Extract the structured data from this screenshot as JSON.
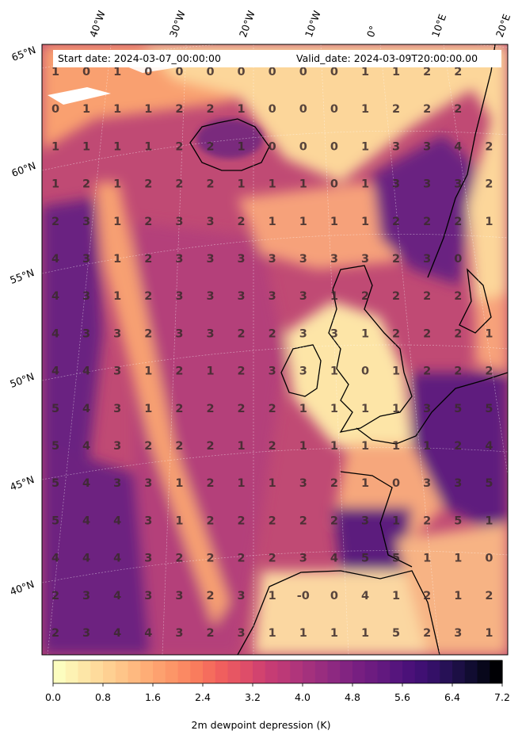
{
  "header": {
    "start_text": "Start date: 2024-03-07_00:00:00",
    "valid_text": "Valid_date: 2024-03-09T20:00:00.00"
  },
  "lon_labels": [
    "40°W",
    "30°W",
    "20°W",
    "10°W",
    "0°",
    "10°E",
    "20°E"
  ],
  "lat_labels": [
    "65°N",
    "60°N",
    "55°N",
    "50°N",
    "45°N",
    "40°N"
  ],
  "grid_values": [
    [
      "1",
      "0",
      "1",
      "0",
      "0",
      "0",
      "0",
      "0",
      "0",
      "0",
      "1",
      "1",
      "2",
      "2",
      ""
    ],
    [
      "0",
      "1",
      "1",
      "1",
      "2",
      "2",
      "1",
      "0",
      "0",
      "0",
      "1",
      "2",
      "2",
      "2",
      ""
    ],
    [
      "1",
      "1",
      "1",
      "1",
      "2",
      "2",
      "1",
      "0",
      "0",
      "0",
      "1",
      "3",
      "3",
      "4",
      "2"
    ],
    [
      "1",
      "2",
      "1",
      "2",
      "2",
      "2",
      "1",
      "1",
      "1",
      "0",
      "1",
      "3",
      "3",
      "3",
      "2"
    ],
    [
      "2",
      "3",
      "1",
      "2",
      "3",
      "3",
      "2",
      "1",
      "1",
      "1",
      "1",
      "2",
      "2",
      "2",
      "1"
    ],
    [
      "4",
      "3",
      "1",
      "2",
      "3",
      "3",
      "3",
      "3",
      "3",
      "3",
      "3",
      "2",
      "3",
      "0",
      ""
    ],
    [
      "4",
      "3",
      "1",
      "2",
      "3",
      "3",
      "3",
      "3",
      "3",
      "1",
      "2",
      "2",
      "2",
      "2",
      ""
    ],
    [
      "4",
      "3",
      "3",
      "2",
      "3",
      "3",
      "2",
      "2",
      "3",
      "3",
      "1",
      "2",
      "2",
      "2",
      "1"
    ],
    [
      "4",
      "4",
      "3",
      "1",
      "2",
      "1",
      "2",
      "3",
      "3",
      "1",
      "0",
      "1",
      "2",
      "2",
      "2"
    ],
    [
      "5",
      "4",
      "3",
      "1",
      "2",
      "2",
      "2",
      "2",
      "1",
      "1",
      "1",
      "1",
      "3",
      "5",
      "5"
    ],
    [
      "5",
      "4",
      "3",
      "2",
      "2",
      "2",
      "1",
      "2",
      "1",
      "1",
      "1",
      "1",
      "1",
      "2",
      "4"
    ],
    [
      "5",
      "4",
      "3",
      "3",
      "1",
      "2",
      "1",
      "1",
      "3",
      "2",
      "1",
      "0",
      "3",
      "3",
      "5"
    ],
    [
      "5",
      "4",
      "4",
      "3",
      "1",
      "2",
      "2",
      "2",
      "2",
      "2",
      "3",
      "1",
      "2",
      "5",
      "1"
    ],
    [
      "4",
      "4",
      "4",
      "3",
      "2",
      "2",
      "2",
      "2",
      "3",
      "4",
      "5",
      "5",
      "1",
      "1",
      "0"
    ],
    [
      "2",
      "3",
      "4",
      "3",
      "3",
      "2",
      "3",
      "1",
      "-0",
      "0",
      "4",
      "1",
      "2",
      "1",
      "2"
    ],
    [
      "2",
      "3",
      "4",
      "4",
      "3",
      "2",
      "3",
      "1",
      "1",
      "1",
      "1",
      "5",
      "2",
      "3",
      "1"
    ]
  ],
  "colorbar": {
    "ticks": [
      "0.0",
      "0.8",
      "1.6",
      "2.4",
      "3.2",
      "4.0",
      "4.8",
      "5.6",
      "6.4",
      "7.2"
    ],
    "label": "2m dewpoint depression (K)",
    "colors": [
      "#fcfdbf",
      "#fde8a9",
      "#fed395",
      "#febf84",
      "#fea973",
      "#fc9367",
      "#f97b5d",
      "#f1605d",
      "#e14f67",
      "#cb3e72",
      "#b73779",
      "#a1307e",
      "#8c2981",
      "#781f81",
      "#641a80",
      "#4f127b",
      "#3b0f70",
      "#231151",
      "#0f0c2e",
      "#000004"
    ]
  },
  "field_colors": {
    "sea_mid": "#b5407a",
    "sea_dark": "#6a2281",
    "land_light": "#fde7a6",
    "plume": "#f9a26f"
  }
}
